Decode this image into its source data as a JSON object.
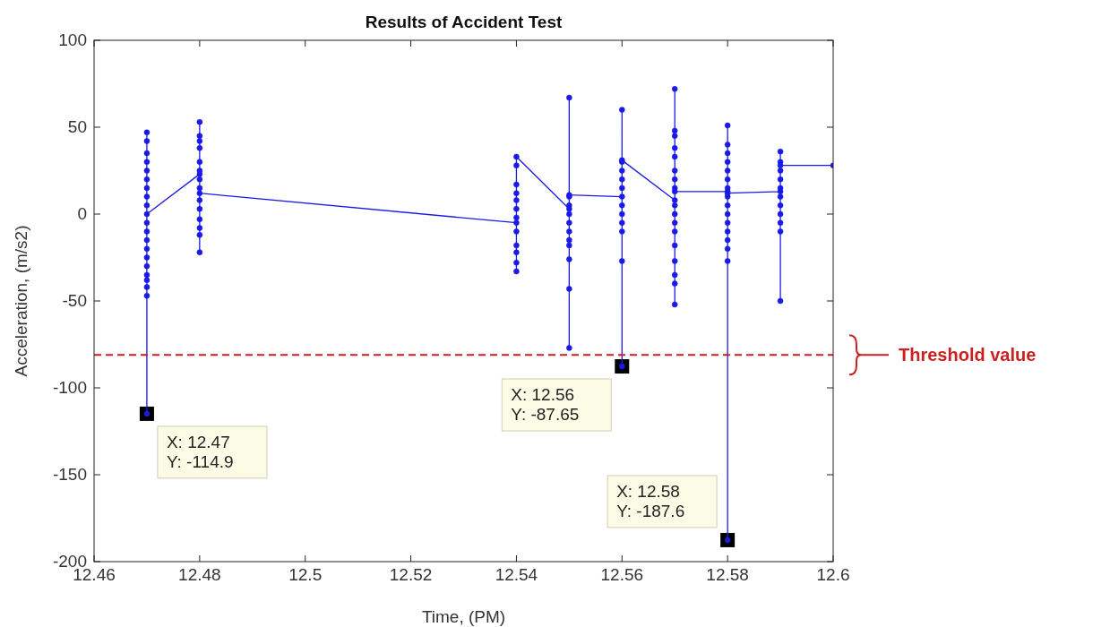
{
  "chart_data": {
    "type": "line",
    "title": "Results of Accident Test",
    "xlabel": "Time, (PM)",
    "ylabel": "Acceleration, (m/s2)",
    "series": [
      {
        "color": "#1a1ae6",
        "x": [
          12.47,
          12.47,
          12.47,
          12.47,
          12.47,
          12.47,
          12.47,
          12.47,
          12.47,
          12.47,
          12.47,
          12.47,
          12.47,
          12.47,
          12.47,
          12.47,
          12.47,
          12.47,
          12.47,
          12.47,
          12.47,
          12.48,
          12.48,
          12.48,
          12.48,
          12.48,
          12.48,
          12.48,
          12.48,
          12.48,
          12.48,
          12.48,
          12.48,
          12.48,
          12.48,
          12.48,
          12.48,
          12.54,
          12.54,
          12.54,
          12.54,
          12.54,
          12.54,
          12.54,
          12.54,
          12.54,
          12.54,
          12.54,
          12.54,
          12.54,
          12.55,
          12.55,
          12.55,
          12.55,
          12.55,
          12.55,
          12.55,
          12.55,
          12.55,
          12.55,
          12.55,
          12.55,
          12.55,
          12.56,
          12.56,
          12.56,
          12.56,
          12.56,
          12.56,
          12.56,
          12.56,
          12.56,
          12.56,
          12.56,
          12.56,
          12.56,
          12.57,
          12.57,
          12.57,
          12.57,
          12.57,
          12.57,
          12.57,
          12.57,
          12.57,
          12.57,
          12.57,
          12.57,
          12.57,
          12.57,
          12.57,
          12.57,
          12.57,
          12.57,
          12.57,
          12.58,
          12.58,
          12.58,
          12.58,
          12.58,
          12.58,
          12.58,
          12.58,
          12.58,
          12.58,
          12.58,
          12.58,
          12.58,
          12.58,
          12.58,
          12.58,
          12.58,
          12.58,
          12.59,
          12.59,
          12.59,
          12.59,
          12.59,
          12.59,
          12.59,
          12.59,
          12.59,
          12.59,
          12.59,
          12.59,
          12.59,
          12.6
        ],
        "values": [
          47,
          42,
          35,
          30,
          25,
          20,
          15,
          10,
          5,
          -5,
          -10,
          -15,
          -20,
          -25,
          -30,
          -35,
          -38,
          -42,
          -47,
          -114.9,
          0,
          23,
          53,
          45,
          42,
          38,
          30,
          25,
          20,
          15,
          8,
          3,
          -3,
          -8,
          -12,
          -22,
          12,
          -5,
          17,
          12,
          8,
          3,
          -2,
          -10,
          -18,
          -22,
          -28,
          -33,
          28,
          33,
          3,
          67,
          10,
          5,
          0,
          -5,
          -10,
          -15,
          -18,
          -26,
          -43,
          -77,
          11,
          10,
          60,
          30,
          25,
          20,
          15,
          5,
          0,
          -5,
          -10,
          -27,
          -87.65,
          31,
          8,
          72,
          48,
          45,
          38,
          33,
          25,
          20,
          15,
          5,
          0,
          -5,
          -10,
          -18,
          -27,
          -35,
          -40,
          -52,
          13,
          13,
          51,
          40,
          35,
          30,
          25,
          20,
          15,
          10,
          5,
          0,
          -5,
          -10,
          -15,
          -20,
          -27,
          -187.6,
          12,
          13,
          36,
          30,
          25,
          20,
          15,
          10,
          5,
          0,
          -5,
          -10,
          -50,
          28,
          28
        ]
      }
    ],
    "xlim": [
      12.46,
      12.6
    ],
    "xticks": [
      12.46,
      12.48,
      12.5,
      12.52,
      12.54,
      12.56,
      12.58,
      12.6
    ],
    "ylim": [
      -200,
      100
    ],
    "yticks": [
      -200,
      -150,
      -100,
      -50,
      0,
      50,
      100
    ],
    "marker": "circle",
    "line_style": "solid",
    "ref_lines": [
      {
        "axis": "y",
        "value": -81,
        "label": "Threshold value",
        "color": "#cc1f1f",
        "line_style": "dashed"
      }
    ],
    "annotations": [
      {
        "text": "X: 12.47\nY: -114.9",
        "x": 12.47,
        "y": -114.9
      },
      {
        "text": "X: 12.56\nY: -87.65",
        "x": 12.56,
        "y": -87.65
      },
      {
        "text": "X: 12.58\nY: -187.6",
        "x": 12.58,
        "y": -187.6
      }
    ]
  }
}
